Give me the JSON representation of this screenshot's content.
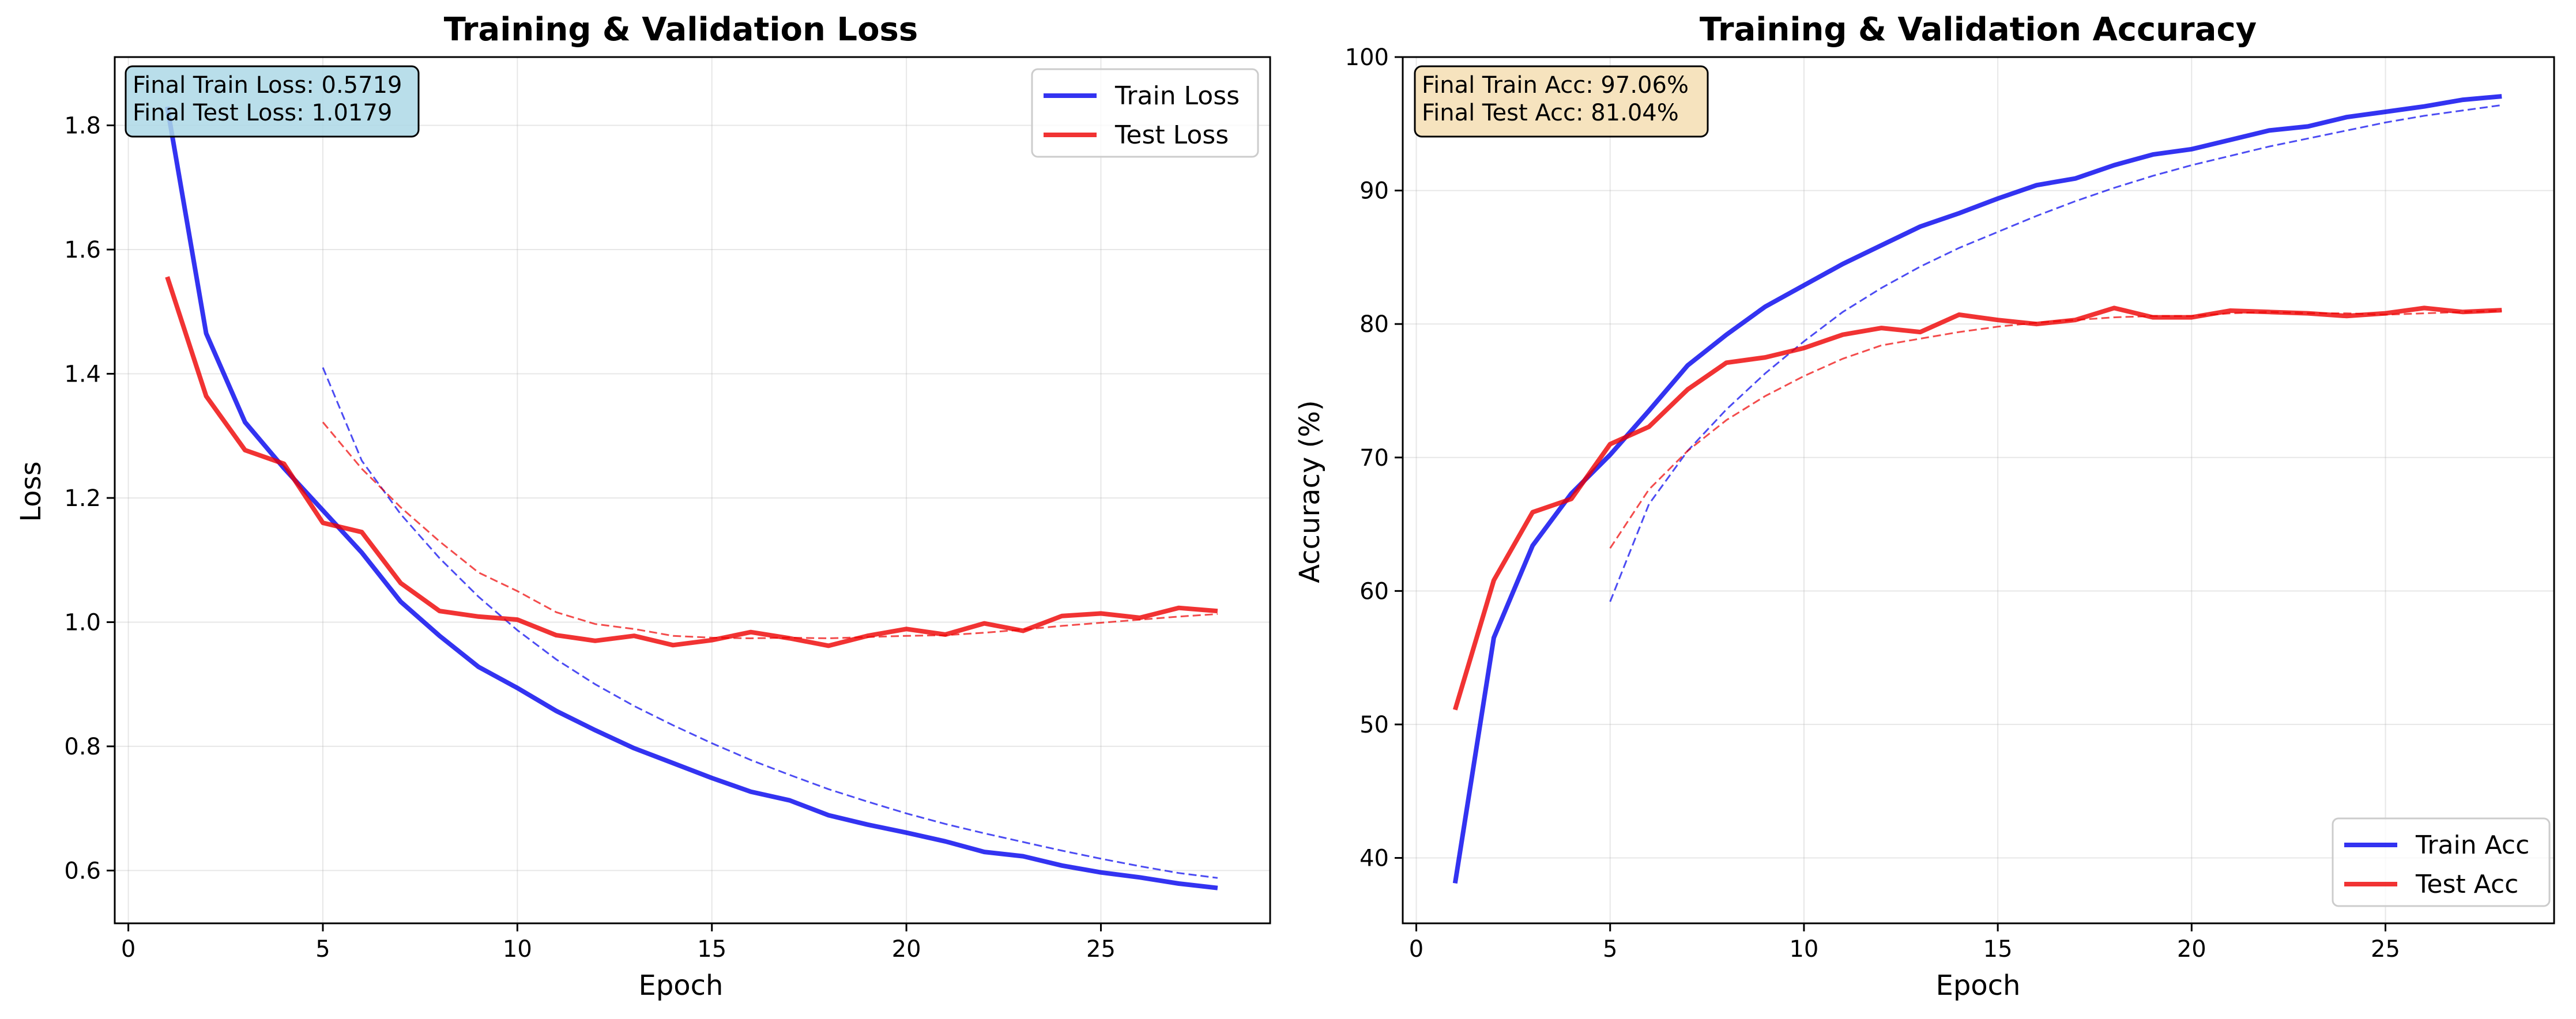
{
  "chart_data": [
    {
      "type": "line",
      "title": "Training & Validation Loss",
      "xlabel": "Epoch",
      "ylabel": "Loss",
      "xlim": [
        -0.35,
        29.35
      ],
      "ylim": [
        0.515,
        1.91
      ],
      "xticks": [
        0,
        5,
        10,
        15,
        20,
        25
      ],
      "yticks": [
        0.6,
        0.8,
        1.0,
        1.2,
        1.4,
        1.6,
        1.8
      ],
      "grid": true,
      "legend_position": "top-right",
      "annotation": [
        "Final Train Loss: 0.5719",
        "Final Test Loss: 1.0179"
      ],
      "series": [
        {
          "name": "Train Loss",
          "color": "#0000ee",
          "x": [
            1,
            2,
            3,
            4,
            5,
            6,
            7,
            8,
            9,
            10,
            11,
            12,
            13,
            14,
            15,
            16,
            17,
            18,
            19,
            20,
            21,
            22,
            23,
            24,
            25,
            26,
            27,
            28
          ],
          "values": [
            1.83,
            1.465,
            1.322,
            1.248,
            1.18,
            1.112,
            1.033,
            0.978,
            0.928,
            0.894,
            0.857,
            0.826,
            0.797,
            0.773,
            0.749,
            0.727,
            0.713,
            0.689,
            0.674,
            0.661,
            0.647,
            0.63,
            0.623,
            0.608,
            0.597,
            0.589,
            0.579,
            0.5719
          ]
        },
        {
          "name": "Test Loss",
          "color": "#ee0000",
          "x": [
            1,
            2,
            3,
            4,
            5,
            6,
            7,
            8,
            9,
            10,
            11,
            12,
            13,
            14,
            15,
            16,
            17,
            18,
            19,
            20,
            21,
            22,
            23,
            24,
            25,
            26,
            27,
            28
          ],
          "values": [
            1.556,
            1.364,
            1.277,
            1.255,
            1.16,
            1.145,
            1.063,
            1.018,
            1.009,
            1.004,
            0.979,
            0.97,
            0.978,
            0.963,
            0.971,
            0.984,
            0.974,
            0.962,
            0.978,
            0.989,
            0.98,
            0.998,
            0.986,
            1.01,
            1.014,
            1.007,
            1.023,
            1.0179
          ]
        }
      ],
      "trend_series": [
        {
          "color": "#0000ee",
          "x": [
            5,
            6,
            7,
            8,
            9,
            10,
            11,
            12,
            13,
            14,
            15,
            16,
            17,
            18,
            19,
            20,
            21,
            22,
            23,
            24,
            25,
            26,
            27,
            28
          ],
          "values": [
            1.41,
            1.26,
            1.174,
            1.103,
            1.041,
            0.987,
            0.94,
            0.9,
            0.865,
            0.834,
            0.805,
            0.778,
            0.754,
            0.731,
            0.711,
            0.692,
            0.675,
            0.66,
            0.646,
            0.632,
            0.619,
            0.607,
            0.596,
            0.588
          ]
        },
        {
          "color": "#ee0000",
          "x": [
            5,
            6,
            7,
            8,
            9,
            10,
            11,
            12,
            13,
            14,
            15,
            16,
            17,
            18,
            19,
            20,
            21,
            22,
            23,
            24,
            25,
            26,
            27,
            28
          ],
          "values": [
            1.322,
            1.247,
            1.185,
            1.13,
            1.08,
            1.05,
            1.016,
            0.997,
            0.989,
            0.978,
            0.975,
            0.974,
            0.975,
            0.974,
            0.976,
            0.978,
            0.979,
            0.983,
            0.988,
            0.994,
            0.999,
            1.004,
            1.009,
            1.013
          ]
        }
      ]
    },
    {
      "type": "line",
      "title": "Training & Validation Accuracy",
      "xlabel": "Epoch",
      "ylabel": "Accuracy (%)",
      "xlim": [
        -0.35,
        29.35
      ],
      "ylim": [
        35.1,
        100
      ],
      "xticks": [
        0,
        5,
        10,
        15,
        20,
        25
      ],
      "yticks": [
        40,
        50,
        60,
        70,
        80,
        90,
        100
      ],
      "grid": true,
      "legend_position": "bottom-right",
      "annotation": [
        "Final Train Acc: 97.06%",
        "Final Test Acc: 81.04%"
      ],
      "series": [
        {
          "name": "Train Acc",
          "color": "#0000ee",
          "x": [
            1,
            2,
            3,
            4,
            5,
            6,
            7,
            8,
            9,
            10,
            11,
            12,
            13,
            14,
            15,
            16,
            17,
            18,
            19,
            20,
            21,
            22,
            23,
            24,
            25,
            26,
            27,
            28
          ],
          "values": [
            38.1,
            56.5,
            63.4,
            67.3,
            70.2,
            73.5,
            76.9,
            79.2,
            81.3,
            82.9,
            84.5,
            85.9,
            87.3,
            88.3,
            89.4,
            90.4,
            90.9,
            91.9,
            92.7,
            93.1,
            93.8,
            94.5,
            94.8,
            95.5,
            95.9,
            96.3,
            96.8,
            97.06
          ]
        },
        {
          "name": "Test Acc",
          "color": "#ee0000",
          "x": [
            1,
            2,
            3,
            4,
            5,
            6,
            7,
            8,
            9,
            10,
            11,
            12,
            13,
            14,
            15,
            16,
            17,
            18,
            19,
            20,
            21,
            22,
            23,
            24,
            25,
            26,
            27,
            28
          ],
          "values": [
            51.1,
            60.8,
            65.9,
            66.9,
            71.0,
            72.3,
            75.1,
            77.1,
            77.5,
            78.2,
            79.2,
            79.7,
            79.4,
            80.7,
            80.3,
            80.0,
            80.3,
            81.2,
            80.5,
            80.5,
            81.0,
            80.9,
            80.8,
            80.6,
            80.8,
            81.2,
            80.9,
            81.04
          ]
        }
      ],
      "trend_series": [
        {
          "color": "#0000ee",
          "x": [
            5,
            6,
            7,
            8,
            9,
            10,
            11,
            12,
            13,
            14,
            15,
            16,
            17,
            18,
            19,
            20,
            21,
            22,
            23,
            24,
            25,
            26,
            27,
            28
          ],
          "values": [
            59.2,
            66.5,
            70.5,
            73.6,
            76.3,
            78.7,
            80.9,
            82.7,
            84.3,
            85.7,
            86.9,
            88.1,
            89.2,
            90.2,
            91.1,
            91.9,
            92.6,
            93.3,
            93.9,
            94.5,
            95.1,
            95.6,
            96.0,
            96.4
          ]
        },
        {
          "color": "#ee0000",
          "x": [
            5,
            6,
            7,
            8,
            9,
            10,
            11,
            12,
            13,
            14,
            15,
            16,
            17,
            18,
            19,
            20,
            21,
            22,
            23,
            24,
            25,
            26,
            27,
            28
          ],
          "values": [
            63.2,
            67.6,
            70.5,
            72.8,
            74.6,
            76.1,
            77.4,
            78.4,
            78.9,
            79.4,
            79.8,
            80.1,
            80.3,
            80.5,
            80.6,
            80.6,
            80.8,
            80.9,
            80.8,
            80.8,
            80.7,
            80.8,
            80.9,
            81.0
          ]
        }
      ]
    }
  ]
}
